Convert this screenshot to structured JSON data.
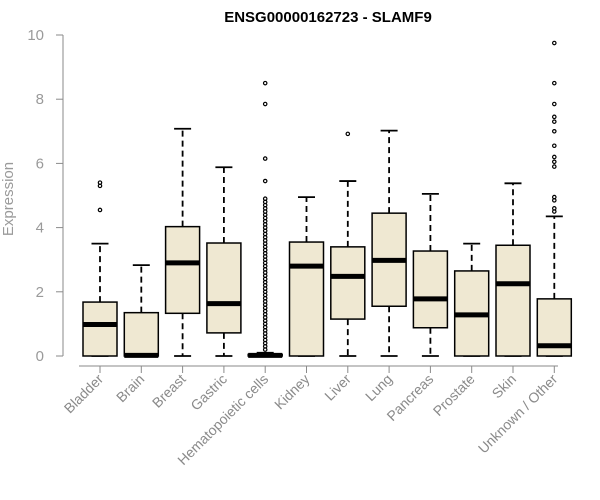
{
  "chart_data": {
    "type": "box",
    "title": "ENSG00000162723 - SLAMF9",
    "xlabel": "",
    "ylabel": "Expression",
    "ylim": [
      0,
      10
    ],
    "yticks": [
      0,
      2,
      4,
      6,
      8,
      10
    ],
    "grid": false,
    "legend": "none",
    "colors": {
      "box_fill": "#efe8d2",
      "stroke": "#000000",
      "axis_text": "#9a9a9a"
    },
    "categories": [
      "Bladder",
      "Brain",
      "Breast",
      "Gastric",
      "Hematopoietic cells",
      "Kidney",
      "Liver",
      "Lung",
      "Pancreas",
      "Prostate",
      "Skin",
      "Unknown / Other"
    ],
    "boxes": [
      {
        "category": "Bladder",
        "whisker_low": 0,
        "q1": 0,
        "median": 0.98,
        "q3": 1.68,
        "whisker_high": 3.5,
        "outliers": [
          4.55,
          5.3,
          5.4
        ]
      },
      {
        "category": "Brain",
        "whisker_low": 0,
        "q1": 0,
        "median": 0.02,
        "q3": 1.35,
        "whisker_high": 2.83,
        "outliers": []
      },
      {
        "category": "Breast",
        "whisker_low": 0,
        "q1": 1.33,
        "median": 2.9,
        "q3": 4.03,
        "whisker_high": 7.08,
        "outliers": []
      },
      {
        "category": "Gastric",
        "whisker_low": 0,
        "q1": 0.72,
        "median": 1.63,
        "q3": 3.52,
        "whisker_high": 5.88,
        "outliers": []
      },
      {
        "category": "Hematopoietic cells",
        "whisker_low": 0,
        "q1": 0,
        "median": 0.02,
        "q3": 0.05,
        "whisker_high": 0.1,
        "outliers": [
          0.2,
          0.3,
          0.4,
          0.5,
          0.6,
          0.7,
          0.8,
          0.9,
          1.0,
          1.1,
          1.2,
          1.3,
          1.4,
          1.5,
          1.6,
          1.7,
          1.8,
          1.9,
          2.0,
          2.1,
          2.2,
          2.3,
          2.4,
          2.5,
          2.6,
          2.7,
          2.8,
          2.9,
          3.0,
          3.1,
          3.2,
          3.3,
          3.4,
          3.5,
          3.6,
          3.7,
          3.8,
          3.9,
          4.0,
          4.1,
          4.2,
          4.3,
          4.4,
          4.5,
          4.6,
          4.7,
          4.8,
          4.9,
          5.45,
          6.15,
          7.85,
          8.5
        ]
      },
      {
        "category": "Kidney",
        "whisker_low": 0,
        "q1": 0,
        "median": 2.8,
        "q3": 3.55,
        "whisker_high": 4.95,
        "outliers": []
      },
      {
        "category": "Liver",
        "whisker_low": 0,
        "q1": 1.15,
        "median": 2.48,
        "q3": 3.4,
        "whisker_high": 5.45,
        "outliers": [
          6.92
        ]
      },
      {
        "category": "Lung",
        "whisker_low": 0,
        "q1": 1.55,
        "median": 2.98,
        "q3": 4.45,
        "whisker_high": 7.02,
        "outliers": []
      },
      {
        "category": "Pancreas",
        "whisker_low": 0,
        "q1": 0.88,
        "median": 1.78,
        "q3": 3.27,
        "whisker_high": 5.05,
        "outliers": []
      },
      {
        "category": "Prostate",
        "whisker_low": 0,
        "q1": 0,
        "median": 1.28,
        "q3": 2.65,
        "whisker_high": 3.5,
        "outliers": []
      },
      {
        "category": "Skin",
        "whisker_low": 0,
        "q1": 0,
        "median": 2.25,
        "q3": 3.45,
        "whisker_high": 5.38,
        "outliers": []
      },
      {
        "category": "Unknown / Other",
        "whisker_low": 0,
        "q1": 0,
        "median": 0.32,
        "q3": 1.78,
        "whisker_high": 4.35,
        "outliers": [
          4.5,
          4.6,
          4.85,
          4.95,
          5.9,
          6.05,
          6.2,
          6.55,
          7.0,
          7.3,
          7.45,
          7.85,
          8.5,
          9.75
        ]
      }
    ]
  }
}
